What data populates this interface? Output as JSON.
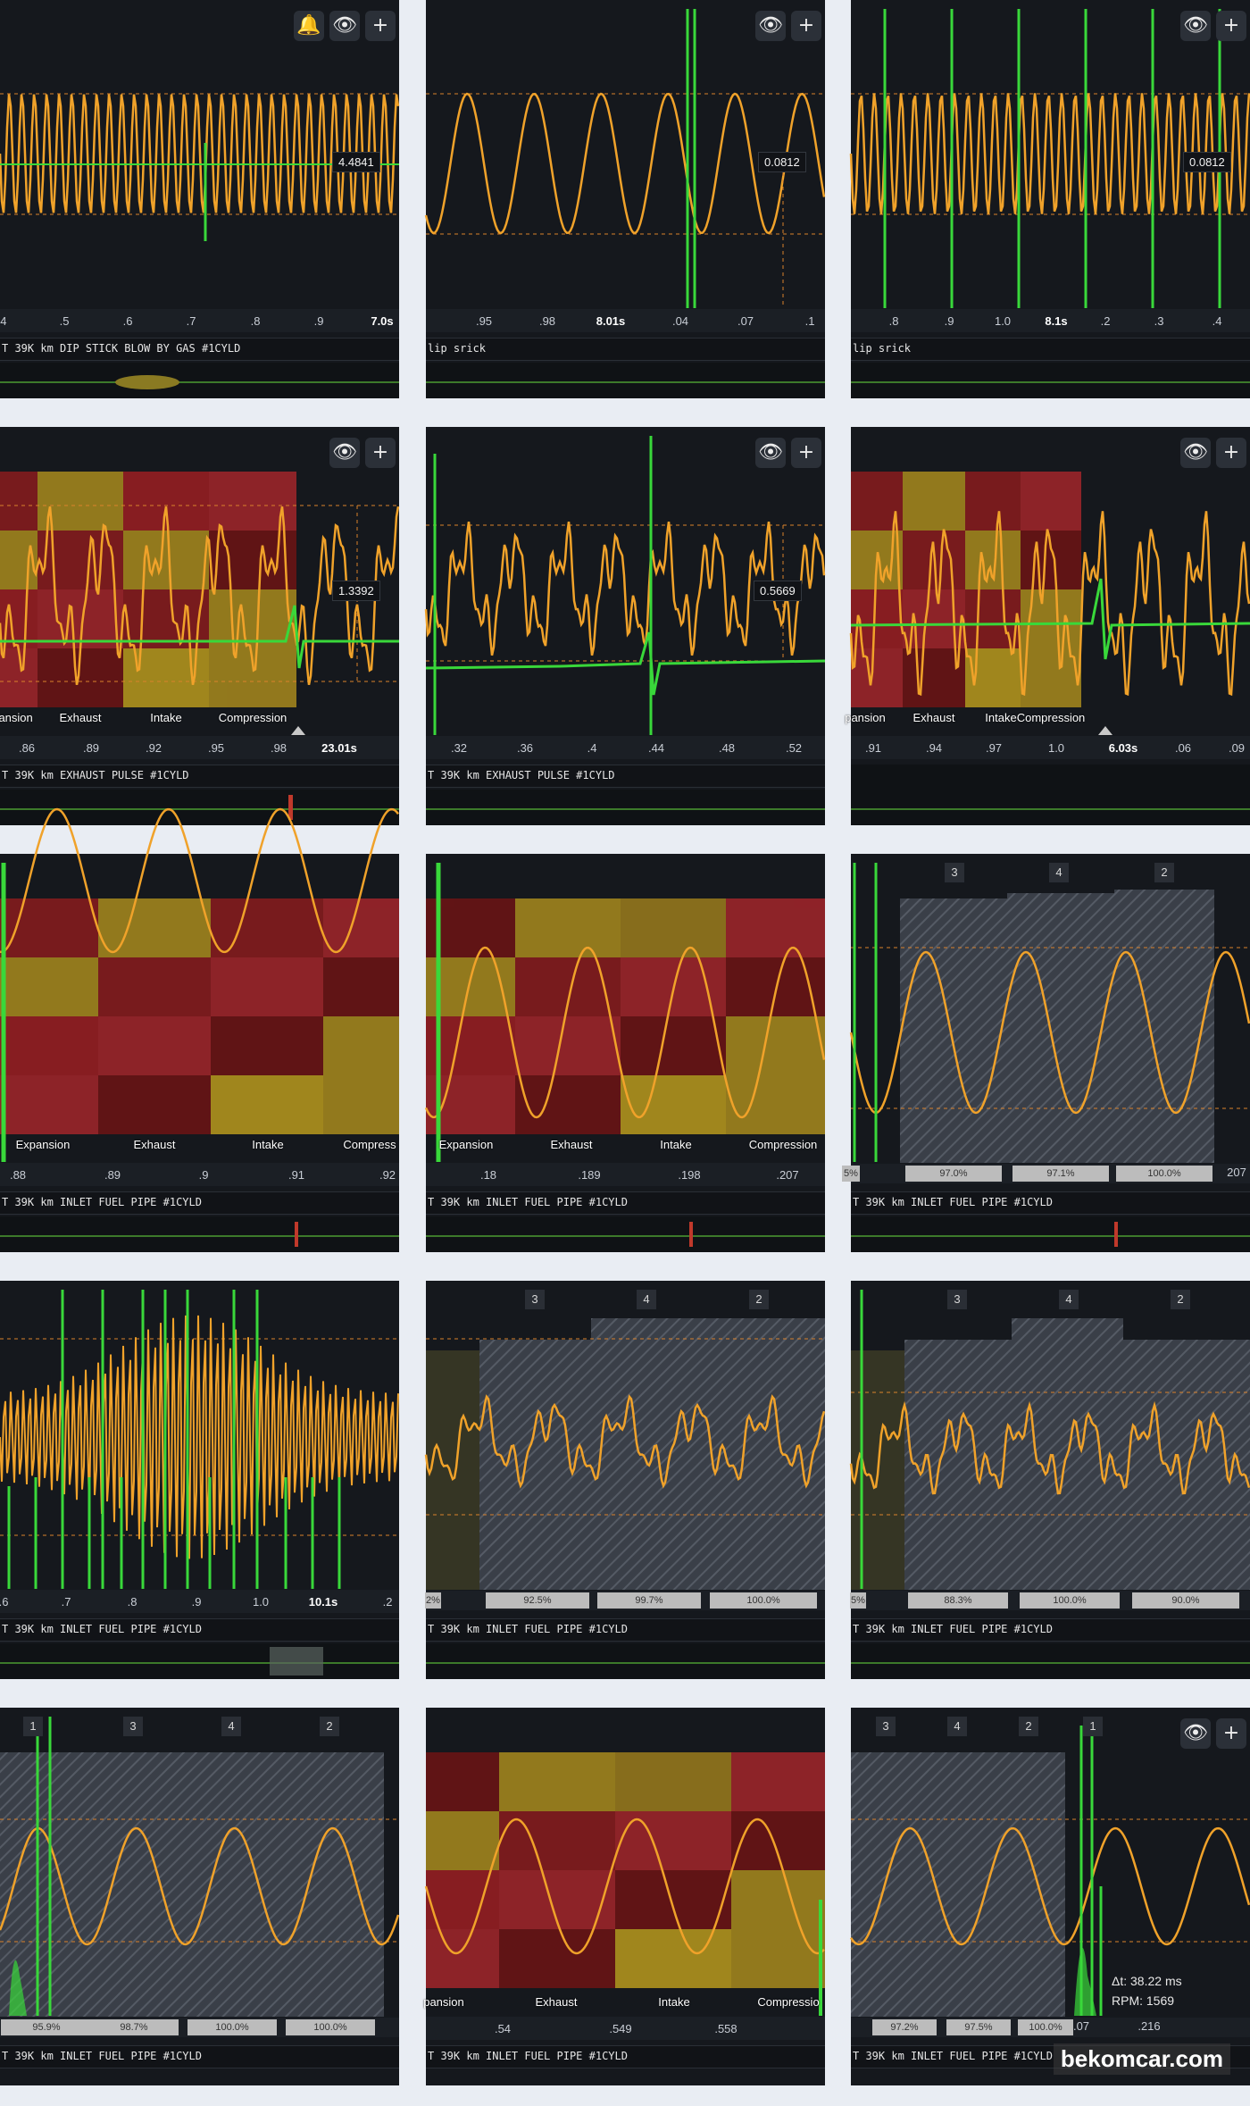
{
  "colors": {
    "wave": "#f0a22a",
    "trigger": "#39d83a",
    "grid_dash": "#d9822b",
    "bg": "#15181d",
    "red": "#9b1e22",
    "yellow": "#b99a1e"
  },
  "icons": [
    "bell-icon",
    "eye-icon",
    "plus-icon"
  ],
  "panels": [
    {
      "caption": "T 39K km DIP STICK BLOW BY GAS #1CYLD",
      "readout": "4.4841",
      "ticks": [
        ".4",
        ".5",
        ".6",
        ".7",
        ".8",
        ".9",
        "7.0s"
      ]
    },
    {
      "caption": "lip srick",
      "readout": "0.0812",
      "ticks": [
        ".95",
        ".98",
        "8.01s",
        ".04",
        ".07",
        ".1"
      ]
    },
    {
      "caption": "lip srick",
      "readout": "0.0812",
      "ticks": [
        ".8",
        ".9",
        "1.0",
        "8.1s",
        ".2",
        ".3",
        ".4"
      ]
    },
    {
      "caption": "T 39K km EXHAUST PULSE #1CYLD",
      "readout": "1.3392",
      "ticks": [
        ".86",
        ".89",
        ".92",
        ".95",
        ".98",
        "23.01s"
      ],
      "cycles": [
        "pansion",
        "Exhaust",
        "Intake",
        "Compression"
      ]
    },
    {
      "caption": "T 39K km EXHAUST PULSE #1CYLD",
      "readout": "0.5669",
      "ticks": [
        ".32",
        ".36",
        ".4",
        ".44",
        ".48",
        ".52"
      ]
    },
    {
      "caption": "",
      "readout": "",
      "ticks": [
        ".91",
        ".94",
        ".97",
        "1.0",
        "6.03s",
        ".06",
        ".09"
      ],
      "cycles": [
        "pansion",
        "Exhaust",
        "Intake",
        "Compression"
      ]
    },
    {
      "caption": "T 39K km INLET FUEL PIPE #1CYLD",
      "ticks": [
        ".88",
        ".89",
        ".9",
        ".91",
        ".92"
      ],
      "cycles": [
        "Expansion",
        "Exhaust",
        "Intake",
        "Compress"
      ]
    },
    {
      "caption": "T 39K km INLET FUEL PIPE #1CYLD",
      "ticks": [
        ".18",
        ".189",
        ".198",
        ".207"
      ],
      "cycles": [
        "Expansion",
        "Exhaust",
        "Intake",
        "Compression"
      ]
    },
    {
      "caption": "T 39K km INLET FUEL PIPE #1CYLD",
      "cyl": [
        "3",
        "4",
        "2"
      ],
      "pcts": [
        "5%",
        "97.0%",
        "97.1%",
        "100.0%"
      ],
      "pct_tail": "207"
    },
    {
      "caption": "T 39K km INLET FUEL PIPE #1CYLD",
      "ticks": [
        ".6",
        ".7",
        ".8",
        ".9",
        "1.0",
        "10.1s",
        ".2"
      ]
    },
    {
      "caption": "T 39K km INLET FUEL PIPE #1CYLD",
      "cyl": [
        "3",
        "4",
        "2"
      ],
      "pcts": [
        "2%",
        "92.5%",
        "99.7%",
        "100.0%"
      ]
    },
    {
      "caption": "T 39K km INLET FUEL PIPE #1CYLD",
      "cyl": [
        "3",
        "4",
        "2"
      ],
      "pcts": [
        "5%",
        "88.3%",
        "100.0%",
        "90.0%"
      ]
    },
    {
      "caption": "T 39K km INLET FUEL PIPE #1CYLD",
      "cyl": [
        "1",
        "3",
        "4",
        "2"
      ],
      "pcts": [
        "95.9%",
        "98.7%",
        "100.0%",
        "100.0%"
      ]
    },
    {
      "caption": "T 39K km INLET FUEL PIPE #1CYLD",
      "ticks": [
        ".54",
        ".549",
        ".558"
      ],
      "cycles": [
        "pansion",
        "Exhaust",
        "Intake",
        "Compressio"
      ]
    },
    {
      "caption": "T 39K km INLET FUEL PIPE #1CYLD",
      "cyl": [
        "3",
        "4",
        "2",
        "1"
      ],
      "pcts": [
        "97.2%",
        "97.5%",
        "100.0%"
      ],
      "ticks": [
        ".07",
        ".216"
      ],
      "delta": "Δt: 38.22 ms",
      "rpm": "RPM: 1569"
    }
  ],
  "watermark": "bekomcar.com"
}
